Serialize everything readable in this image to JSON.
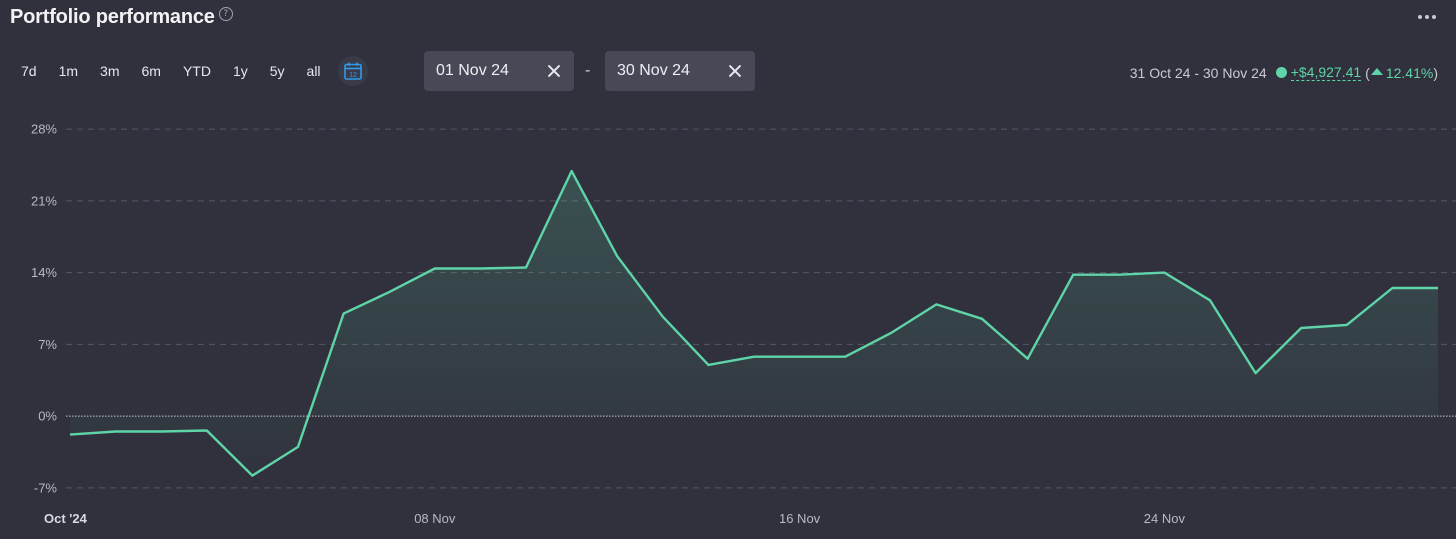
{
  "header": {
    "title": "Portfolio performance",
    "help_glyph": "?"
  },
  "ranges": [
    {
      "label": "7d"
    },
    {
      "label": "1m"
    },
    {
      "label": "3m"
    },
    {
      "label": "6m"
    },
    {
      "label": "YTD"
    },
    {
      "label": "1y"
    },
    {
      "label": "5y"
    },
    {
      "label": "all"
    }
  ],
  "calendar_day": "12",
  "date_from": "01 Nov 24",
  "date_to": "30 Nov 24",
  "date_separator": "-",
  "summary": {
    "range_text": "31 Oct 24 - 30 Nov 24",
    "gain": "+$4,927.41",
    "pct": "12.41%",
    "paren_open": "(",
    "paren_close": ")"
  },
  "colors": {
    "background": "#30313c",
    "line": "#5fd4a8",
    "accent_blue": "#2f9bea"
  },
  "chart_data": {
    "type": "area",
    "ylabel": "",
    "xlabel": "",
    "ylim": [
      -7.5,
      28.5
    ],
    "ytick_values": [
      28,
      21,
      14,
      7,
      0,
      -7
    ],
    "ytick_labels": [
      "28%",
      "21%",
      "14%",
      "7%",
      "0%",
      "-7%"
    ],
    "grid": true,
    "zero_line": true,
    "xtick_labels": [
      {
        "x": "2024-10-31",
        "label": "Oct '24"
      },
      {
        "x": "2024-11-08",
        "label": "08 Nov"
      },
      {
        "x": "2024-11-16",
        "label": "16 Nov"
      },
      {
        "x": "2024-11-24",
        "label": "24 Nov"
      }
    ],
    "series": [
      {
        "x": [
          "2024-10-31",
          "2024-11-01",
          "2024-11-02",
          "2024-11-03",
          "2024-11-04",
          "2024-11-05",
          "2024-11-06",
          "2024-11-07",
          "2024-11-08",
          "2024-11-09",
          "2024-11-10",
          "2024-11-11",
          "2024-11-12",
          "2024-11-13",
          "2024-11-14",
          "2024-11-15",
          "2024-11-16",
          "2024-11-17",
          "2024-11-18",
          "2024-11-19",
          "2024-11-20",
          "2024-11-21",
          "2024-11-22",
          "2024-11-23",
          "2024-11-24",
          "2024-11-25",
          "2024-11-26",
          "2024-11-27",
          "2024-11-28",
          "2024-11-29",
          "2024-11-30"
        ],
        "y": [
          -1.8,
          -1.5,
          -1.5,
          -1.4,
          -5.8,
          -3.0,
          10.0,
          12.1,
          14.4,
          14.4,
          14.5,
          23.9,
          15.6,
          9.7,
          5.0,
          5.8,
          5.8,
          5.8,
          8.1,
          10.9,
          9.5,
          5.6,
          13.8,
          13.8,
          14.0,
          11.3,
          4.2,
          8.6,
          8.9,
          12.5,
          12.5
        ]
      }
    ]
  }
}
